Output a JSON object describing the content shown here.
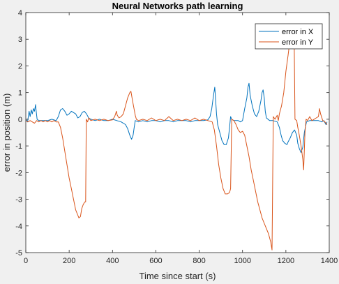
{
  "chart_data": {
    "type": "line",
    "title": "Neural Networks path learning",
    "xlabel": "Time since start (s)",
    "ylabel": "error in position (m)",
    "xlim": [
      0,
      1400
    ],
    "ylim": [
      -5,
      4
    ],
    "xticks": [
      "0",
      "200",
      "400",
      "600",
      "800",
      "1000",
      "1200",
      "1400"
    ],
    "yticks": [
      "-5",
      "-4",
      "-3",
      "-2",
      "-1",
      "0",
      "1",
      "2",
      "3",
      "4"
    ],
    "grid": false,
    "legend_position": "top-right",
    "series": [
      {
        "name": "error in X",
        "color": "#0072BD",
        "points": [
          [
            0,
            0.0
          ],
          [
            8,
            -0.1
          ],
          [
            15,
            0.3
          ],
          [
            20,
            0.1
          ],
          [
            25,
            0.35
          ],
          [
            30,
            0.2
          ],
          [
            35,
            0.4
          ],
          [
            40,
            0.3
          ],
          [
            45,
            0.55
          ],
          [
            48,
            0.3
          ],
          [
            52,
            0.0
          ],
          [
            60,
            -0.05
          ],
          [
            80,
            -0.05
          ],
          [
            100,
            -0.05
          ],
          [
            120,
            0.0
          ],
          [
            140,
            -0.05
          ],
          [
            150,
            0.1
          ],
          [
            160,
            0.35
          ],
          [
            170,
            0.4
          ],
          [
            180,
            0.3
          ],
          [
            190,
            0.15
          ],
          [
            200,
            0.2
          ],
          [
            210,
            0.3
          ],
          [
            220,
            0.25
          ],
          [
            230,
            0.2
          ],
          [
            240,
            0.05
          ],
          [
            250,
            0.1
          ],
          [
            260,
            0.25
          ],
          [
            270,
            0.3
          ],
          [
            280,
            0.2
          ],
          [
            290,
            0.05
          ],
          [
            300,
            0.0
          ],
          [
            320,
            -0.05
          ],
          [
            340,
            0.0
          ],
          [
            360,
            -0.05
          ],
          [
            380,
            -0.05
          ],
          [
            400,
            0.0
          ],
          [
            420,
            -0.05
          ],
          [
            440,
            -0.1
          ],
          [
            460,
            -0.2
          ],
          [
            470,
            -0.35
          ],
          [
            480,
            -0.6
          ],
          [
            488,
            -0.75
          ],
          [
            495,
            -0.6
          ],
          [
            500,
            -0.3
          ],
          [
            505,
            -0.05
          ],
          [
            520,
            -0.1
          ],
          [
            540,
            -0.05
          ],
          [
            560,
            -0.1
          ],
          [
            580,
            -0.05
          ],
          [
            600,
            -0.05
          ],
          [
            620,
            -0.1
          ],
          [
            640,
            -0.05
          ],
          [
            660,
            -0.05
          ],
          [
            680,
            -0.1
          ],
          [
            700,
            -0.05
          ],
          [
            720,
            -0.05
          ],
          [
            740,
            -0.05
          ],
          [
            760,
            -0.1
          ],
          [
            780,
            -0.05
          ],
          [
            800,
            -0.05
          ],
          [
            820,
            -0.05
          ],
          [
            840,
            -0.02
          ],
          [
            850,
            0.1
          ],
          [
            858,
            0.4
          ],
          [
            863,
            0.7
          ],
          [
            868,
            1.0
          ],
          [
            872,
            1.2
          ],
          [
            876,
            0.7
          ],
          [
            880,
            0.2
          ],
          [
            885,
            -0.2
          ],
          [
            895,
            -0.5
          ],
          [
            905,
            -0.8
          ],
          [
            915,
            -0.95
          ],
          [
            925,
            -0.95
          ],
          [
            935,
            -0.7
          ],
          [
            940,
            -0.3
          ],
          [
            945,
            0.1
          ],
          [
            950,
            0.0
          ],
          [
            960,
            -0.05
          ],
          [
            980,
            -0.05
          ],
          [
            990,
            -0.1
          ],
          [
            1000,
            -0.05
          ],
          [
            1010,
            0.4
          ],
          [
            1020,
            0.8
          ],
          [
            1025,
            1.2
          ],
          [
            1030,
            1.35
          ],
          [
            1035,
            0.9
          ],
          [
            1045,
            0.5
          ],
          [
            1055,
            0.2
          ],
          [
            1065,
            0.1
          ],
          [
            1075,
            0.3
          ],
          [
            1085,
            0.7
          ],
          [
            1090,
            1.0
          ],
          [
            1095,
            1.1
          ],
          [
            1100,
            0.8
          ],
          [
            1105,
            0.3
          ],
          [
            1110,
            0.05
          ],
          [
            1125,
            -0.05
          ],
          [
            1140,
            -0.05
          ],
          [
            1160,
            -0.1
          ],
          [
            1170,
            -0.3
          ],
          [
            1178,
            -0.6
          ],
          [
            1185,
            -0.8
          ],
          [
            1195,
            -0.9
          ],
          [
            1205,
            -0.95
          ],
          [
            1210,
            -0.85
          ],
          [
            1220,
            -0.7
          ],
          [
            1230,
            -0.5
          ],
          [
            1240,
            -0.4
          ],
          [
            1250,
            -0.6
          ],
          [
            1255,
            -0.9
          ],
          [
            1262,
            -1.1
          ],
          [
            1270,
            -1.25
          ],
          [
            1278,
            -1.05
          ],
          [
            1285,
            -0.5
          ],
          [
            1295,
            -0.1
          ],
          [
            1310,
            -0.05
          ],
          [
            1330,
            -0.05
          ],
          [
            1350,
            -0.05
          ],
          [
            1365,
            -0.1
          ],
          [
            1375,
            -0.05
          ],
          [
            1385,
            -0.2
          ],
          [
            1390,
            -0.1
          ]
        ]
      },
      {
        "name": "error in Y",
        "color": "#D95319",
        "points": [
          [
            0,
            -0.05
          ],
          [
            10,
            -0.1
          ],
          [
            20,
            -0.05
          ],
          [
            30,
            -0.1
          ],
          [
            40,
            -0.15
          ],
          [
            50,
            -0.05
          ],
          [
            60,
            -0.1
          ],
          [
            70,
            -0.05
          ],
          [
            80,
            -0.1
          ],
          [
            90,
            -0.05
          ],
          [
            100,
            -0.1
          ],
          [
            110,
            -0.05
          ],
          [
            120,
            -0.1
          ],
          [
            130,
            -0.05
          ],
          [
            140,
            -0.1
          ],
          [
            150,
            -0.1
          ],
          [
            160,
            -0.3
          ],
          [
            170,
            -0.7
          ],
          [
            180,
            -1.2
          ],
          [
            190,
            -1.7
          ],
          [
            200,
            -2.2
          ],
          [
            210,
            -2.6
          ],
          [
            220,
            -3.0
          ],
          [
            230,
            -3.4
          ],
          [
            240,
            -3.6
          ],
          [
            245,
            -3.7
          ],
          [
            252,
            -3.65
          ],
          [
            258,
            -3.35
          ],
          [
            265,
            -3.2
          ],
          [
            272,
            -3.1
          ],
          [
            276,
            -3.1
          ],
          [
            278,
            -1.0
          ],
          [
            279,
            0.0
          ],
          [
            285,
            -0.1
          ],
          [
            290,
            0.05
          ],
          [
            300,
            -0.05
          ],
          [
            320,
            0.0
          ],
          [
            340,
            -0.05
          ],
          [
            360,
            0.0
          ],
          [
            380,
            -0.05
          ],
          [
            400,
            -0.02
          ],
          [
            410,
            0.1
          ],
          [
            418,
            0.3
          ],
          [
            422,
            0.15
          ],
          [
            430,
            0.05
          ],
          [
            440,
            0.1
          ],
          [
            450,
            0.2
          ],
          [
            460,
            0.5
          ],
          [
            470,
            0.8
          ],
          [
            480,
            1.0
          ],
          [
            485,
            1.05
          ],
          [
            490,
            0.8
          ],
          [
            497,
            0.5
          ],
          [
            505,
            0.15
          ],
          [
            510,
            0.0
          ],
          [
            520,
            -0.05
          ],
          [
            540,
            0.0
          ],
          [
            560,
            -0.05
          ],
          [
            580,
            0.05
          ],
          [
            600,
            -0.05
          ],
          [
            620,
            0.0
          ],
          [
            640,
            -0.05
          ],
          [
            660,
            0.1
          ],
          [
            680,
            -0.05
          ],
          [
            700,
            0.0
          ],
          [
            720,
            -0.05
          ],
          [
            740,
            0.0
          ],
          [
            760,
            -0.05
          ],
          [
            780,
            0.05
          ],
          [
            800,
            -0.05
          ],
          [
            820,
            0.0
          ],
          [
            840,
            -0.05
          ],
          [
            860,
            -0.1
          ],
          [
            870,
            -0.4
          ],
          [
            880,
            -1.0
          ],
          [
            890,
            -1.7
          ],
          [
            900,
            -2.2
          ],
          [
            910,
            -2.6
          ],
          [
            920,
            -2.8
          ],
          [
            930,
            -2.8
          ],
          [
            940,
            -2.75
          ],
          [
            945,
            -2.6
          ],
          [
            948,
            -1.0
          ],
          [
            950,
            0.0
          ],
          [
            960,
            -0.05
          ],
          [
            970,
            -0.2
          ],
          [
            980,
            -0.4
          ],
          [
            990,
            -0.5
          ],
          [
            1000,
            -0.45
          ],
          [
            1010,
            -0.6
          ],
          [
            1020,
            -1.0
          ],
          [
            1030,
            -1.4
          ],
          [
            1040,
            -1.9
          ],
          [
            1050,
            -2.3
          ],
          [
            1060,
            -2.7
          ],
          [
            1070,
            -3.1
          ],
          [
            1080,
            -3.4
          ],
          [
            1090,
            -3.7
          ],
          [
            1100,
            -3.9
          ],
          [
            1110,
            -4.1
          ],
          [
            1120,
            -4.3
          ],
          [
            1130,
            -4.6
          ],
          [
            1136,
            -4.9
          ],
          [
            1140,
            -1.5
          ],
          [
            1142,
            0.1
          ],
          [
            1150,
            0.0
          ],
          [
            1160,
            0.15
          ],
          [
            1165,
            -0.05
          ],
          [
            1170,
            0.2
          ],
          [
            1180,
            0.5
          ],
          [
            1190,
            1.0
          ],
          [
            1200,
            1.8
          ],
          [
            1210,
            2.4
          ],
          [
            1218,
            2.9
          ],
          [
            1222,
            3.0
          ],
          [
            1230,
            2.9
          ],
          [
            1238,
            3.1
          ],
          [
            1242,
            0.0
          ],
          [
            1250,
            -0.05
          ],
          [
            1255,
            -0.3
          ],
          [
            1262,
            -0.6
          ],
          [
            1270,
            -1.0
          ],
          [
            1278,
            -1.5
          ],
          [
            1282,
            -1.9
          ],
          [
            1288,
            -0.5
          ],
          [
            1293,
            0.0
          ],
          [
            1300,
            -0.05
          ],
          [
            1310,
            0.1
          ],
          [
            1320,
            -0.05
          ],
          [
            1330,
            0.0
          ],
          [
            1340,
            0.05
          ],
          [
            1350,
            0.1
          ],
          [
            1355,
            0.4
          ],
          [
            1360,
            0.2
          ],
          [
            1370,
            -0.05
          ],
          [
            1380,
            -0.1
          ],
          [
            1390,
            -0.2
          ]
        ]
      }
    ]
  }
}
